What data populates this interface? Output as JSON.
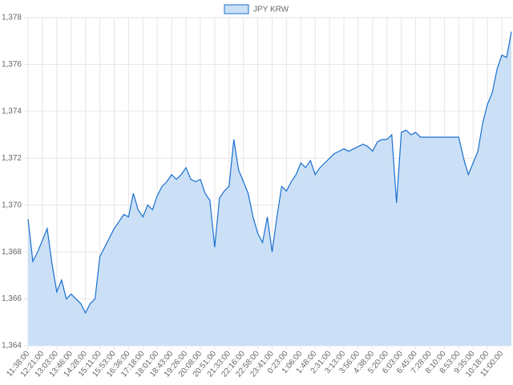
{
  "chart_data": {
    "type": "line",
    "categories": [
      "11:38:00",
      null,
      null,
      "12:21:00",
      null,
      null,
      "13:03:00",
      null,
      null,
      "13:46:00",
      null,
      null,
      "14:28:00",
      null,
      null,
      "15:11:00",
      null,
      null,
      "15:53:00",
      null,
      null,
      "16:36:00",
      null,
      null,
      "17:18:00",
      null,
      null,
      "18:01:00",
      null,
      null,
      "18:43:00",
      null,
      null,
      "19:26:00",
      null,
      null,
      "20:08:00",
      null,
      null,
      "20:51:00",
      null,
      null,
      "21:33:00",
      null,
      null,
      "22:16:00",
      null,
      null,
      "22:58:00",
      null,
      null,
      "23:41:00",
      null,
      null,
      "0:23:00",
      null,
      null,
      "1:06:00",
      null,
      null,
      "1:48:00",
      null,
      null,
      "2:31:00",
      null,
      null,
      "3:13:00",
      null,
      null,
      "3:56:00",
      null,
      null,
      "4:38:00",
      null,
      null,
      "5:20:00",
      null,
      null,
      "6:03:00",
      null,
      null,
      "6:45:00",
      null,
      null,
      "7:28:00",
      null,
      null,
      "8:10:00",
      null,
      null,
      "8:53:00",
      null,
      null,
      "9:35:00",
      null,
      null,
      "10:18:00",
      null,
      null,
      "11:00:00",
      null,
      null
    ],
    "series": [
      {
        "name": "JPY KRW",
        "color": "#1a6fcf",
        "fill": "#cbe0f6",
        "values": [
          1369.4,
          1367.6,
          1368.0,
          1368.5,
          1369.0,
          1367.5,
          1366.3,
          1366.8,
          1366.0,
          1366.2,
          1366.0,
          1365.8,
          1365.4,
          1365.8,
          1366.0,
          1367.8,
          1368.2,
          1368.6,
          1369.0,
          1369.3,
          1369.6,
          1369.5,
          1370.5,
          1369.8,
          1369.5,
          1370.0,
          1369.8,
          1370.4,
          1370.8,
          1371.0,
          1371.3,
          1371.1,
          1371.3,
          1371.6,
          1371.1,
          1371.0,
          1371.1,
          1370.5,
          1370.2,
          1368.2,
          1370.3,
          1370.6,
          1370.8,
          1372.8,
          1371.5,
          1371.0,
          1370.5,
          1369.5,
          1368.8,
          1368.4,
          1369.5,
          1368.0,
          1369.5,
          1370.8,
          1370.6,
          1371.0,
          1371.3,
          1371.8,
          1371.6,
          1371.9,
          1371.3,
          1371.6,
          1371.8,
          1372.0,
          1372.2,
          1372.3,
          1372.4,
          1372.3,
          1372.4,
          1372.5,
          1372.6,
          1372.5,
          1372.3,
          1372.7,
          1372.8,
          1372.8,
          1373.0,
          1370.1,
          1373.1,
          1373.2,
          1373.0,
          1373.1,
          1372.9,
          1372.9,
          1372.9,
          1372.9,
          1372.9,
          1372.9,
          1372.9,
          1372.9,
          1372.9,
          1372.0,
          1371.3,
          1371.8,
          1372.3,
          1373.5,
          1374.3,
          1374.8,
          1375.8,
          1376.4,
          1376.3,
          1377.4
        ]
      }
    ],
    "ylim": [
      1364,
      1378
    ],
    "yticks": [
      {
        "value": 1364,
        "label": "1,364"
      },
      {
        "value": 1366,
        "label": "1,366"
      },
      {
        "value": 1368,
        "label": "1,368"
      },
      {
        "value": 1370,
        "label": "1,370"
      },
      {
        "value": 1372,
        "label": "1,372"
      },
      {
        "value": 1374,
        "label": "1,374"
      },
      {
        "value": 1376,
        "label": "1,376"
      },
      {
        "value": 1378,
        "label": "1,378"
      }
    ],
    "grid": true,
    "legend": "top"
  }
}
